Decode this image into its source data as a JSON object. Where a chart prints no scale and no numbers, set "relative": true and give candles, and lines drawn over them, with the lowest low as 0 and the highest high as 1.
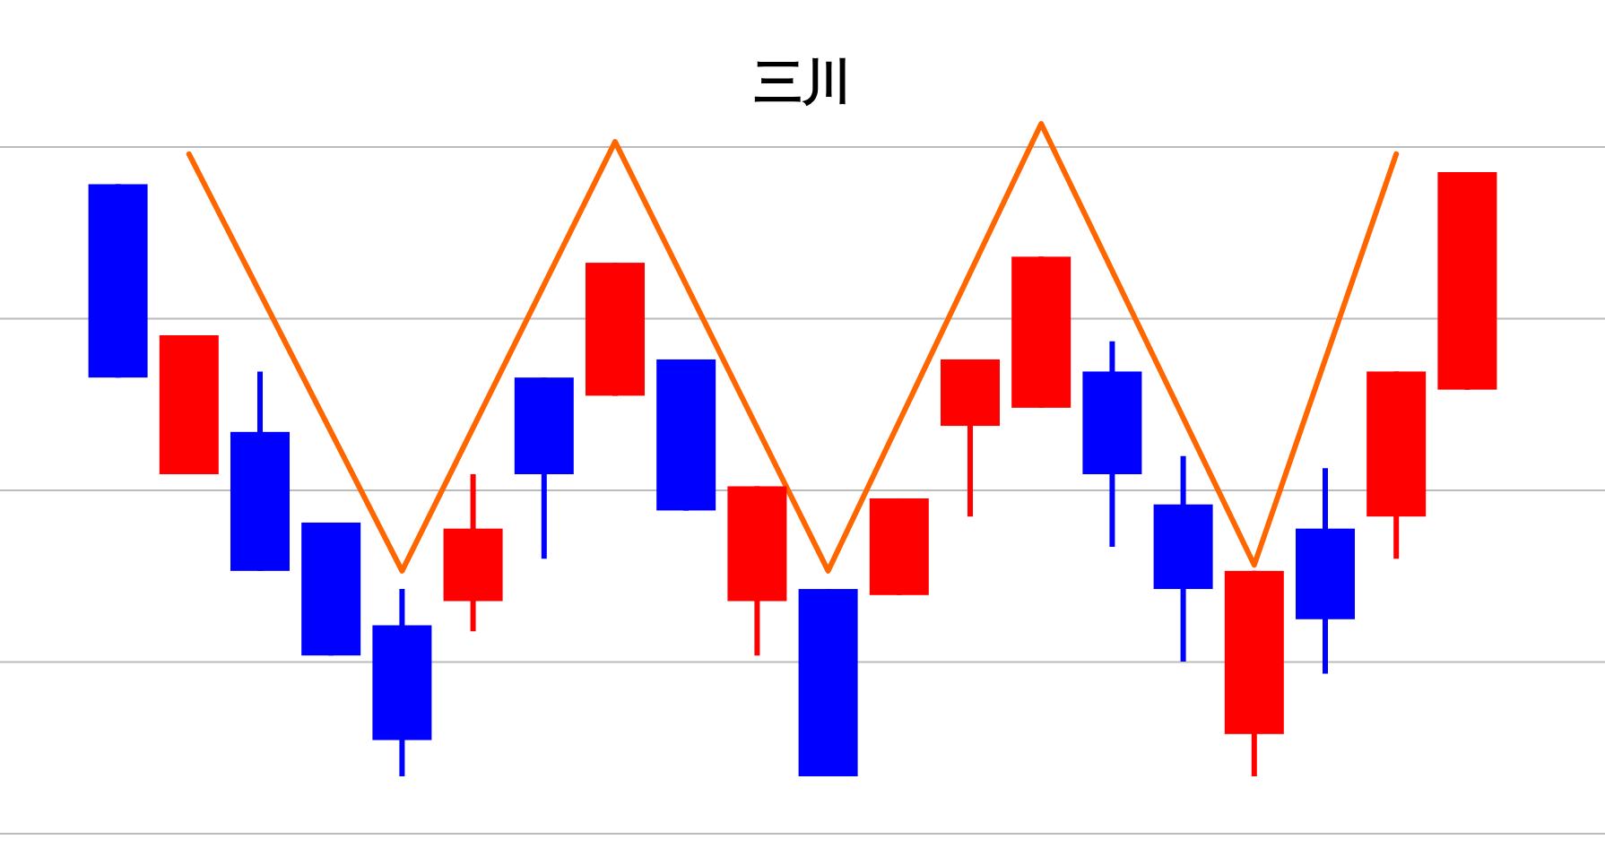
{
  "chart_data": {
    "type": "candlestick",
    "title": "三川",
    "relative": true,
    "grid": true,
    "categories": [
      null,
      null,
      null,
      null,
      null,
      null,
      null,
      null,
      null,
      null,
      null,
      null,
      null,
      null,
      null,
      null,
      null,
      null,
      null,
      null
    ],
    "ohlc": [
      [
        0.98,
        0.98,
        0.66,
        0.66
      ],
      [
        0.5,
        0.73,
        0.5,
        0.73
      ],
      [
        0.57,
        0.67,
        0.34,
        0.34
      ],
      [
        0.42,
        0.42,
        0.2,
        0.2
      ],
      [
        0.25,
        0.31,
        0.0,
        0.06
      ],
      [
        0.29,
        0.5,
        0.24,
        0.41
      ],
      [
        0.66,
        0.66,
        0.36,
        0.5
      ],
      [
        0.63,
        0.85,
        0.63,
        0.85
      ],
      [
        0.69,
        0.69,
        0.44,
        0.44
      ],
      [
        0.29,
        0.48,
        0.2,
        0.48
      ],
      [
        0.31,
        0.31,
        0.0,
        0.0
      ],
      [
        0.3,
        0.46,
        0.3,
        0.46
      ],
      [
        0.58,
        0.69,
        0.43,
        0.69
      ],
      [
        0.61,
        0.86,
        0.61,
        0.86
      ],
      [
        0.67,
        0.72,
        0.38,
        0.5
      ],
      [
        0.45,
        0.53,
        0.19,
        0.31
      ],
      [
        0.07,
        0.34,
        0.0,
        0.34
      ],
      [
        0.41,
        0.51,
        0.17,
        0.26
      ],
      [
        0.43,
        0.67,
        0.36,
        0.67
      ],
      [
        0.64,
        1.0,
        0.64,
        1.0
      ]
    ],
    "colors": [
      "#0000ff",
      "#ff0000",
      "#0000ff",
      "#0000ff",
      "#0000ff",
      "#ff0000",
      "#0000ff",
      "#ff0000",
      "#0000ff",
      "#ff0000",
      "#0000ff",
      "#ff0000",
      "#ff0000",
      "#ff0000",
      "#0000ff",
      "#0000ff",
      "#ff0000",
      "#0000ff",
      "#ff0000",
      "#ff0000"
    ],
    "series": [
      {
        "type": "line",
        "color": "#ff6600",
        "values": [
          null,
          1.03,
          null,
          null,
          0.34,
          null,
          null,
          1.05,
          null,
          null,
          0.34,
          null,
          null,
          1.08,
          null,
          null,
          0.35,
          null,
          1.03,
          null
        ]
      }
    ]
  }
}
